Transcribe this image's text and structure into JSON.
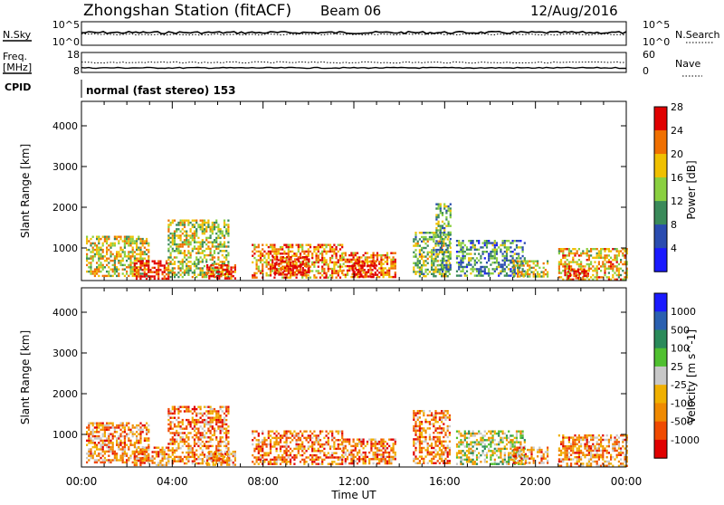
{
  "header": {
    "station": "Zhongshan Station (fitACF)",
    "beam": "Beam 06",
    "date": "12/Aug/2016"
  },
  "panels": {
    "nsky_label": "N.Sky",
    "nsky_ticks": [
      "10^5",
      "10^0"
    ],
    "nsearch_label": "N.Search",
    "nsearch_ticks": [
      "10^5",
      "10^0"
    ],
    "freq_label_1": "Freq.",
    "freq_label_2": "[MHz]",
    "freq_ticks": [
      "18",
      "8"
    ],
    "nave_label": "Nave",
    "nave_ticks": [
      "60",
      "0"
    ],
    "cpid_label": "CPID",
    "cpid_text": "normal (fast stereo) 153"
  },
  "chart_data": [
    {
      "type": "heatmap",
      "title": "",
      "xlabel": "",
      "ylabel": "Slant Range [km]",
      "x_ticks": [
        "00:00",
        "04:00",
        "08:00",
        "12:00",
        "16:00",
        "20:00",
        "00:00"
      ],
      "y_ticks": [
        1000,
        2000,
        3000,
        4000
      ],
      "ylim": [
        200,
        4600
      ],
      "xlim_hours": [
        0,
        24
      ],
      "colorbar": {
        "label": "Power [dB]",
        "ticks": [
          "4",
          "8",
          "12",
          "16",
          "20",
          "24",
          "28"
        ],
        "colors": [
          "#1a1aff",
          "#2a4cb0",
          "#3a8a5a",
          "#8ad040",
          "#f0c000",
          "#f07000",
          "#e00000"
        ]
      },
      "echo_regions": [
        {
          "t0": 0.2,
          "t1": 3.0,
          "r0": 300,
          "r1": 1300,
          "level": 0.6
        },
        {
          "t0": 2.3,
          "t1": 3.8,
          "r0": 250,
          "r1": 700,
          "level": 0.95
        },
        {
          "t0": 3.8,
          "t1": 6.5,
          "r0": 300,
          "r1": 1700,
          "level": 0.55
        },
        {
          "t0": 5.5,
          "t1": 6.8,
          "r0": 250,
          "r1": 600,
          "level": 0.9
        },
        {
          "t0": 7.5,
          "t1": 11.5,
          "r0": 300,
          "r1": 1100,
          "level": 0.75
        },
        {
          "t0": 8.4,
          "t1": 10.0,
          "r0": 350,
          "r1": 800,
          "level": 0.95
        },
        {
          "t0": 11.5,
          "t1": 13.8,
          "r0": 300,
          "r1": 900,
          "level": 0.8
        },
        {
          "t0": 11.9,
          "t1": 13.0,
          "r0": 300,
          "r1": 700,
          "level": 0.97
        },
        {
          "t0": 14.6,
          "t1": 16.2,
          "r0": 300,
          "r1": 1400,
          "level": 0.5
        },
        {
          "t0": 15.6,
          "t1": 16.3,
          "r0": 400,
          "r1": 2100,
          "level": 0.45
        },
        {
          "t0": 16.5,
          "t1": 19.5,
          "r0": 300,
          "r1": 1200,
          "level": 0.35
        },
        {
          "t0": 19.0,
          "t1": 20.5,
          "r0": 300,
          "r1": 700,
          "level": 0.6
        },
        {
          "t0": 21.0,
          "t1": 24.0,
          "r0": 250,
          "r1": 1000,
          "level": 0.65
        },
        {
          "t0": 21.4,
          "t1": 22.3,
          "r0": 250,
          "r1": 500,
          "level": 0.95
        }
      ]
    },
    {
      "type": "heatmap",
      "title": "",
      "xlabel": "Time UT",
      "ylabel": "Slant Range [km]",
      "x_ticks": [
        "00:00",
        "04:00",
        "08:00",
        "12:00",
        "16:00",
        "20:00",
        "00:00"
      ],
      "y_ticks": [
        1000,
        2000,
        3000,
        4000
      ],
      "ylim": [
        200,
        4600
      ],
      "xlim_hours": [
        0,
        24
      ],
      "colorbar": {
        "label": "Velocity [m s^-1]",
        "ticks": [
          "1000",
          "500",
          "100",
          "25",
          "-25",
          "-100",
          "-500",
          "-1000"
        ],
        "colors": [
          "#e00000",
          "#f04a00",
          "#f08a00",
          "#f0b000",
          "#c8c8c8",
          "#50c030",
          "#2a8a5a",
          "#2a60b0",
          "#1a1aff"
        ]
      },
      "echo_regions": [
        {
          "t0": 0.2,
          "t1": 3.0,
          "r0": 300,
          "r1": 1300,
          "level": 0.3
        },
        {
          "t0": 2.3,
          "t1": 3.8,
          "r0": 250,
          "r1": 700,
          "level": 0.3
        },
        {
          "t0": 3.8,
          "t1": 6.5,
          "r0": 300,
          "r1": 1700,
          "level": 0.28
        },
        {
          "t0": 5.5,
          "t1": 6.8,
          "r0": 250,
          "r1": 600,
          "level": 0.3
        },
        {
          "t0": 7.5,
          "t1": 11.5,
          "r0": 300,
          "r1": 1100,
          "level": 0.25
        },
        {
          "t0": 11.5,
          "t1": 13.8,
          "r0": 300,
          "r1": 900,
          "level": 0.25
        },
        {
          "t0": 14.6,
          "t1": 16.2,
          "r0": 300,
          "r1": 1600,
          "level": 0.27
        },
        {
          "t0": 16.5,
          "t1": 19.5,
          "r0": 300,
          "r1": 1100,
          "level": 0.5
        },
        {
          "t0": 19.0,
          "t1": 20.5,
          "r0": 300,
          "r1": 700,
          "level": 0.3
        },
        {
          "t0": 21.0,
          "t1": 24.0,
          "r0": 250,
          "r1": 1000,
          "level": 0.3
        }
      ]
    }
  ]
}
